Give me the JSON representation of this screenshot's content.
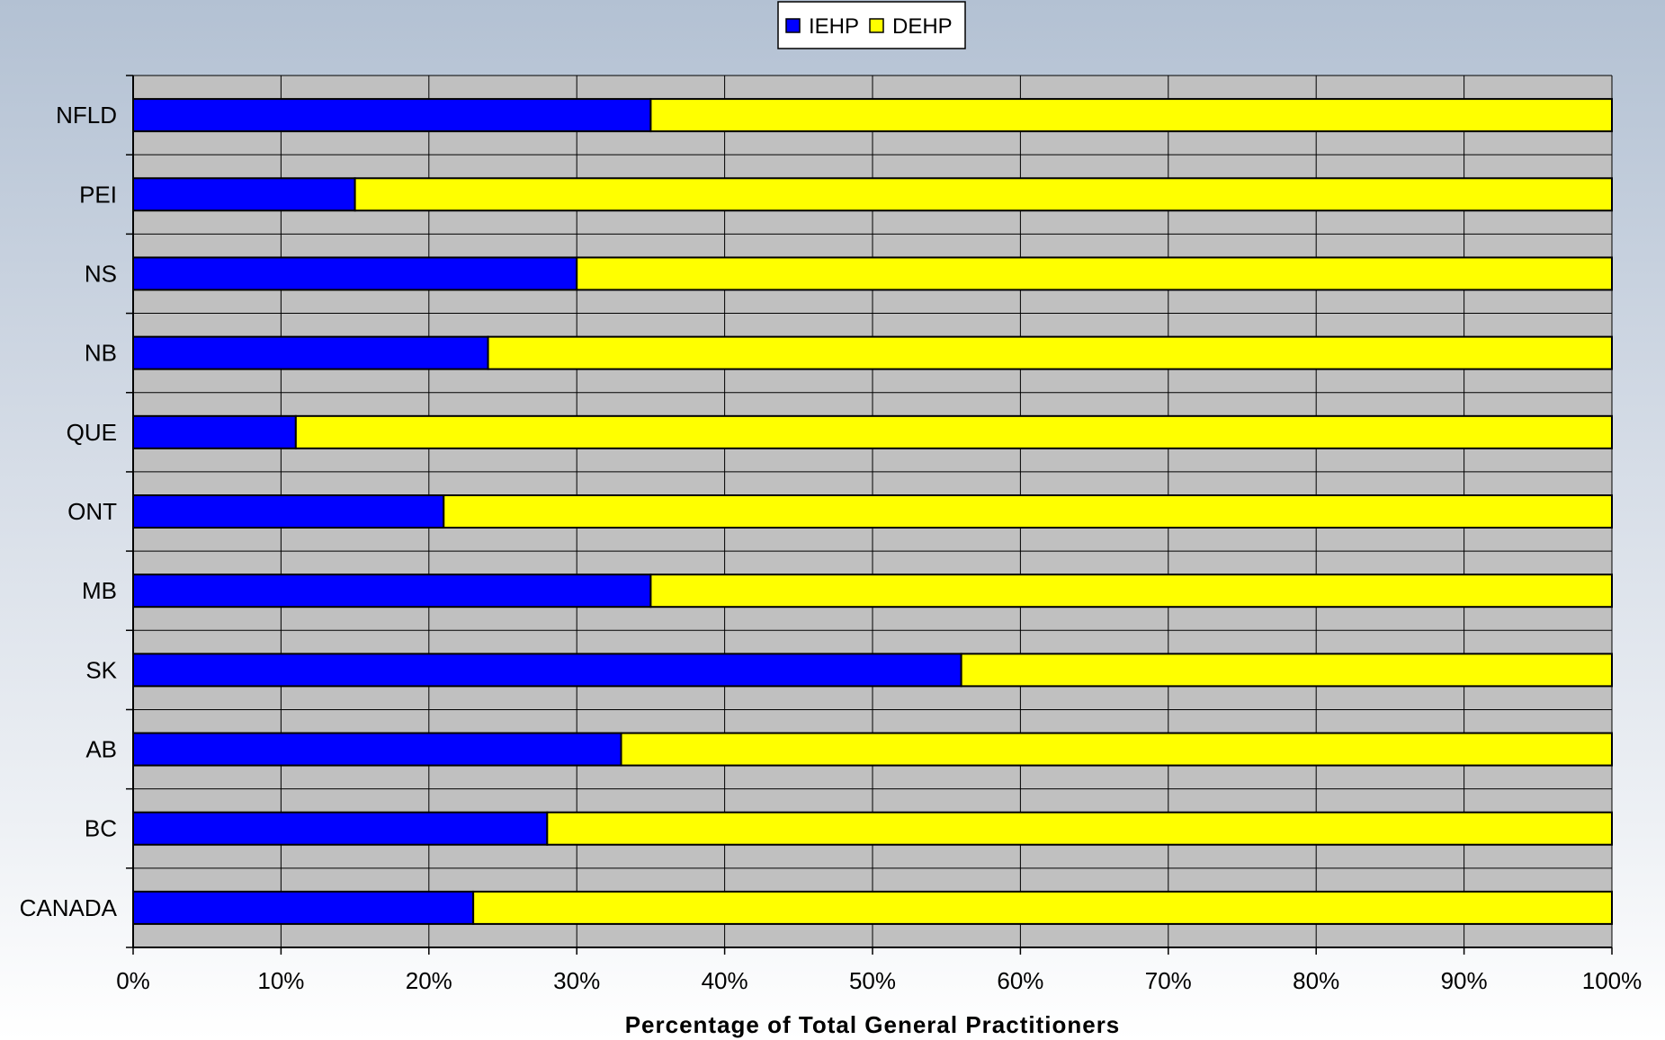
{
  "chart_data": {
    "type": "bar",
    "orientation": "horizontal",
    "stacked": true,
    "categories": [
      "NFLD",
      "PEI",
      "NS",
      "NB",
      "QUE",
      "ONT",
      "MB",
      "SK",
      "AB",
      "BC",
      "CANADA"
    ],
    "series": [
      {
        "name": "IEHP",
        "color": "#0000ff",
        "values": [
          35,
          15,
          30,
          24,
          11,
          21,
          35,
          56,
          33,
          28,
          23
        ]
      },
      {
        "name": "DEHP",
        "color": "#ffff00",
        "values": [
          65,
          85,
          70,
          76,
          89,
          79,
          65,
          44,
          67,
          72,
          77
        ]
      }
    ],
    "xlabel": "Percentage of Total General Practitioners",
    "xlim": [
      0,
      100
    ],
    "xticks": [
      0,
      10,
      20,
      30,
      40,
      50,
      60,
      70,
      80,
      90,
      100
    ],
    "tick_suffix": "%",
    "grid": true,
    "plot_background": "#c0c0c0",
    "legend_position": "top-center"
  }
}
